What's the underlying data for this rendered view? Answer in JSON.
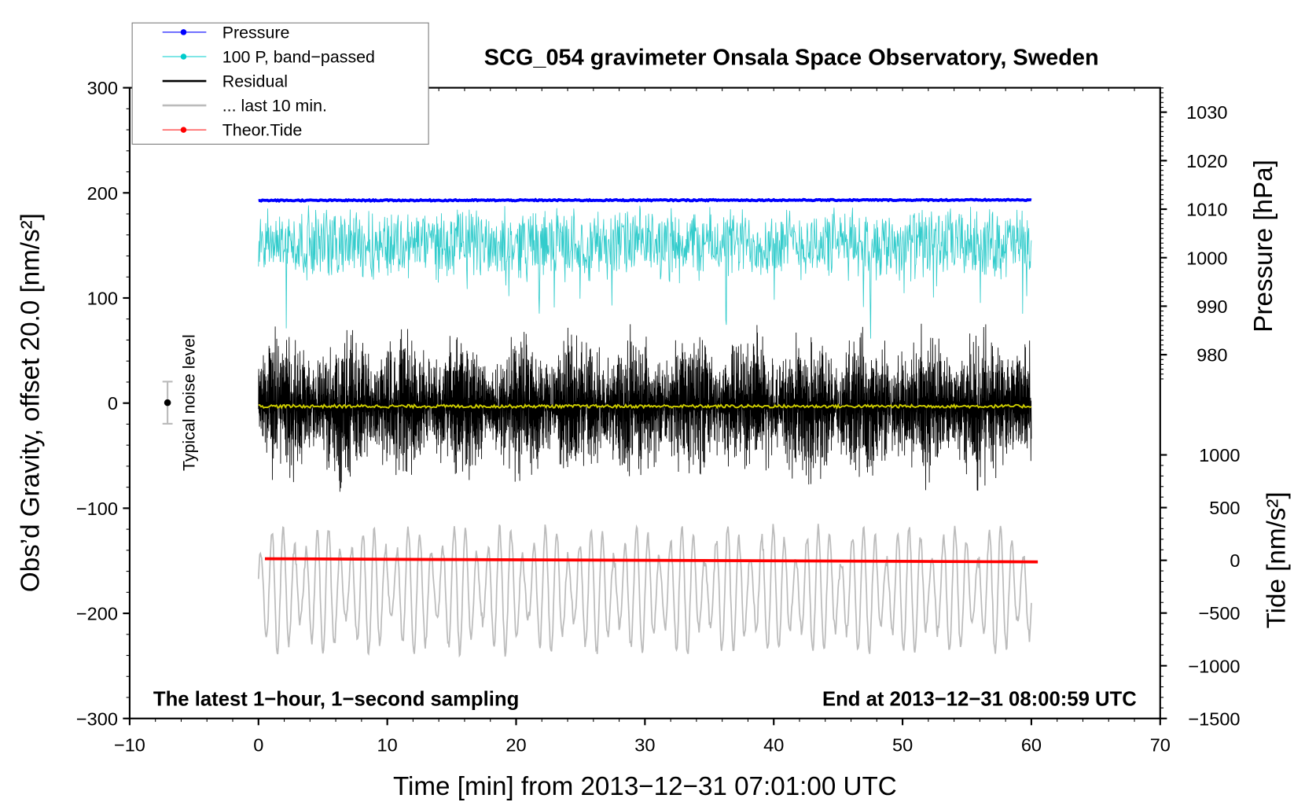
{
  "chart_data": {
    "type": "line",
    "title": "SCG_054 gravimeter Onsala Space Observatory, Sweden",
    "xlabel": "Time [min] from 2013−12−31 07:01:00 UTC",
    "ylabel": "Obs’d Gravity, offset 20.0 [nm/s²]",
    "y2label_pressure": "Pressure [hPa]",
    "y2label_tide": "Tide [nm/s²]",
    "annotation_left": "The latest 1−hour, 1−second sampling",
    "annotation_right": "End at 2013−12−31 08:00:59 UTC",
    "noise_label": "Typical noise level",
    "noise_level": {
      "center": 0,
      "halfwidth": 20
    },
    "xlim": [
      -10,
      70
    ],
    "ylim": [
      -300,
      300
    ],
    "pressure_lim": [
      975,
      1035
    ],
    "tide_lim": [
      -1500,
      1500
    ],
    "x_ticks": [
      "−10",
      "0",
      "10",
      "20",
      "30",
      "40",
      "50",
      "60",
      "70"
    ],
    "x_tick_values": [
      -10,
      0,
      10,
      20,
      30,
      40,
      50,
      60,
      70
    ],
    "y_ticks": [
      "300",
      "200",
      "100",
      "0",
      "−100",
      "−200",
      "−300"
    ],
    "y_tick_values": [
      300,
      200,
      100,
      0,
      -100,
      -200,
      -300
    ],
    "pressure_ticks": [
      "1030",
      "1020",
      "1010",
      "1000",
      "990",
      "980"
    ],
    "pressure_tick_values": [
      1030,
      1020,
      1010,
      1000,
      990,
      980
    ],
    "tide_ticks": [
      "1000",
      "500",
      "0",
      "−500",
      "−1000",
      "−1500"
    ],
    "tide_tick_values": [
      1000,
      500,
      0,
      -500,
      -1000,
      -1500
    ],
    "legend": [
      {
        "label": "Pressure",
        "color": "#0000ff",
        "marker": true
      },
      {
        "label": "100 P, band−passed",
        "color": "#00cccc",
        "marker": true
      },
      {
        "label": "Residual",
        "color": "#000000",
        "marker": false
      },
      {
        "label": "... last 10 min.",
        "color": "#bbbbbb",
        "marker": false
      },
      {
        "label": "Theor.Tide",
        "color": "#ff0000",
        "marker": true
      }
    ],
    "series": [
      {
        "name": "Pressure",
        "axis": "pressure",
        "x_range": [
          0,
          60
        ],
        "values_hPa": {
          "start": 1011.8,
          "end": 1011.9,
          "mean": 1011.8
        },
        "color": "#0000ff"
      },
      {
        "name": "100 P, band-passed",
        "axis": "gravity",
        "x_range": [
          0,
          60
        ],
        "mean": 152,
        "amplitude": 35,
        "spikes": [
          [
            21.8,
            60
          ],
          [
            36.3,
            70
          ],
          [
            47.5,
            70
          ]
        ],
        "color": "#33cccc"
      },
      {
        "name": "Residual",
        "axis": "gravity",
        "x_range": [
          0,
          60
        ],
        "mean": -3,
        "amplitude": 55,
        "color": "#000000"
      },
      {
        "name": "Residual smoothed",
        "axis": "gravity",
        "x_range": [
          0,
          60
        ],
        "mean": -3,
        "color": "#cccc00"
      },
      {
        "name": "... last 10 min.",
        "axis": "gravity",
        "x_range": [
          0,
          60
        ],
        "mean": -178,
        "amplitude": 60,
        "color": "#bbbbbb"
      },
      {
        "name": "Theor.Tide",
        "axis": "tide",
        "x_range": [
          0.5,
          60.5
        ],
        "values": {
          "start": 15,
          "end": -15
        },
        "color": "#ff0000"
      }
    ]
  }
}
